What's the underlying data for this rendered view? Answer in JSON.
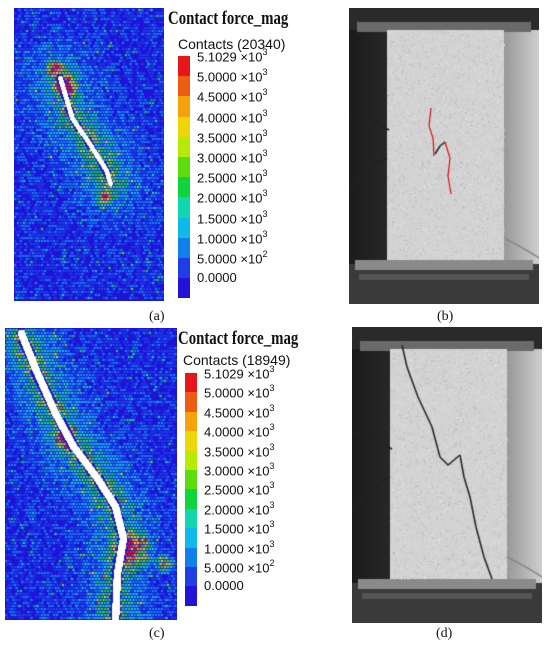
{
  "panel_a": {
    "title": "Contact force_mag",
    "contacts": "Contacts (20340)",
    "caption": "(a)"
  },
  "panel_b": {
    "caption": "(b)"
  },
  "panel_c": {
    "title": "Contact force_mag",
    "contacts": "Contacts (18949)",
    "caption": "(c)"
  },
  "panel_d": {
    "caption": "(d)"
  },
  "legend": {
    "ticks": [
      {
        "mant": "5.1029",
        "exp": "×10",
        "pow": "3"
      },
      {
        "mant": "5.0000",
        "exp": "×10",
        "pow": "3"
      },
      {
        "mant": "4.5000",
        "exp": "×10",
        "pow": "3"
      },
      {
        "mant": "4.0000",
        "exp": "×10",
        "pow": "3"
      },
      {
        "mant": "3.5000",
        "exp": "×10",
        "pow": "3"
      },
      {
        "mant": "3.0000",
        "exp": "×10",
        "pow": "3"
      },
      {
        "mant": "2.5000",
        "exp": "×10",
        "pow": "3"
      },
      {
        "mant": "2.0000",
        "exp": "×10",
        "pow": "3"
      },
      {
        "mant": "1.5000",
        "exp": "×10",
        "pow": "3"
      },
      {
        "mant": "1.0000",
        "exp": "×10",
        "pow": "3"
      },
      {
        "mant": "5.0000",
        "exp": "×10",
        "pow": "2"
      },
      {
        "mant": "0.0000",
        "exp": "",
        "pow": ""
      }
    ],
    "colors": [
      "#e8161b",
      "#ee5b12",
      "#f6a20b",
      "#ecd80a",
      "#b6ea08",
      "#5ddc0e",
      "#0fd43a",
      "#12d6ad",
      "#10b9ea",
      "#137fea",
      "#1f3ee6",
      "#2313d8"
    ]
  }
}
